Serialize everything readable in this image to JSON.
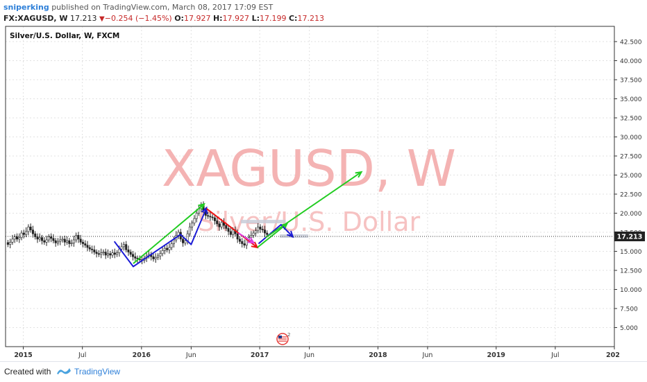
{
  "header": {
    "author": "sniperking",
    "published_text": "published on TradingView.com, March 08, 2017 17:09 EST",
    "symbol": "FX:XAGUSD, W",
    "last": "17.213",
    "change": "−0.254 (−1.45%)",
    "open_label": "O:",
    "open": "17.927",
    "high_label": "H:",
    "high": "17.927",
    "low_label": "L:",
    "low": "17.199",
    "close_label": "C:",
    "close": "17.213"
  },
  "footer": {
    "created_with": "Created with",
    "brand": "TradingView"
  },
  "colors": {
    "green": "#22cc22",
    "red": "#ee1111",
    "blue": "#1a1ad6",
    "magenta": "#e040e0",
    "up": "#222222",
    "down": "#222222",
    "price_tag": "#222222",
    "watermark": "#f4b3b3"
  },
  "chart_data": {
    "type": "candlestick",
    "title": "Silver/U.S. Dollar, W, FXCM",
    "watermark": {
      "symbol": "XAGUSD, W",
      "name": "Silver/U.S. Dollar"
    },
    "price_label": "17.213",
    "y_ticks": [
      "42.500",
      "40.000",
      "37.500",
      "35.000",
      "32.500",
      "30.000",
      "27.500",
      "25.000",
      "22.500",
      "20.000",
      "17.500",
      "15.000",
      "12.500",
      "10.000",
      "7.500",
      "5.000"
    ],
    "y_tick_values": [
      42.5,
      40,
      37.5,
      35,
      32.5,
      30,
      27.5,
      25,
      22.5,
      20,
      17.5,
      15,
      12.5,
      10,
      7.5,
      5
    ],
    "x_ticks": [
      "2015",
      "Jul",
      "2016",
      "Jun",
      "2017",
      "Jun",
      "2018",
      "Jun",
      "2019",
      "Jul",
      "202"
    ],
    "ylim": [
      2.5,
      44.5
    ],
    "close_series": [
      15.9,
      16.2,
      16.6,
      16.9,
      16.6,
      16.8,
      17.4,
      17.2,
      17.6,
      18.2,
      17.8,
      17.3,
      16.9,
      16.6,
      16.8,
      16.4,
      16.2,
      16.5,
      16.9,
      16.7,
      16.4,
      16.1,
      16.3,
      16.5,
      16.6,
      16.2,
      16.4,
      16.0,
      16.1,
      16.5,
      17.1,
      16.6,
      16.2,
      16.0,
      15.8,
      15.5,
      15.3,
      15.2,
      14.9,
      14.7,
      14.6,
      14.8,
      14.9,
      14.5,
      14.7,
      14.5,
      14.8,
      14.6,
      14.8,
      15.3,
      15.6,
      15.9,
      15.2,
      14.9,
      14.6,
      14.3,
      14.1,
      14.0,
      13.9,
      13.8,
      14.1,
      14.4,
      14.6,
      14.3,
      14.0,
      14.2,
      14.4,
      14.7,
      15.1,
      15.4,
      15.2,
      15.5,
      16.0,
      16.5,
      17.1,
      17.5,
      16.6,
      16.1,
      16.4,
      17.3,
      18.2,
      18.7,
      19.3,
      20.0,
      20.6,
      21.0,
      20.4,
      19.7,
      19.6,
      19.5,
      19.4,
      19.0,
      18.6,
      18.2,
      18.8,
      18.4,
      18.0,
      17.6,
      17.2,
      17.8,
      17.3,
      16.6,
      16.3,
      16.0,
      15.8,
      16.5,
      16.8,
      17.1,
      17.4,
      17.7,
      18.2,
      17.9,
      17.8,
      17.4,
      17.2
    ],
    "drawings": [
      {
        "color": "blue",
        "points": [
          [
            2015.77,
            16.3
          ],
          [
            2015.93,
            13.0
          ],
          [
            2016.33,
            17.2
          ],
          [
            2016.42,
            15.9
          ],
          [
            2016.55,
            20.7
          ]
        ]
      },
      {
        "color": "green",
        "points": [
          [
            2015.93,
            13.4
          ],
          [
            2016.53,
            21.2
          ]
        ]
      },
      {
        "color": "red",
        "points": [
          [
            2016.55,
            20.6
          ],
          [
            2016.98,
            15.5
          ]
        ]
      },
      {
        "color": "magenta",
        "points": [
          [
            2016.82,
            17.4
          ],
          [
            2016.95,
            16.1
          ]
        ]
      },
      {
        "color": "green",
        "points": [
          [
            2016.98,
            15.5
          ],
          [
            2017.23,
            18.6
          ]
        ]
      },
      {
        "color": "blue",
        "points": [
          [
            2016.99,
            16.0
          ],
          [
            2017.18,
            18.5
          ],
          [
            2017.28,
            16.9
          ]
        ]
      },
      {
        "color": "green",
        "points": [
          [
            2017.05,
            16.8
          ],
          [
            2017.86,
            25.4
          ]
        ]
      }
    ],
    "zones": [
      {
        "x0": 2016.84,
        "x1": 2017.22,
        "y": 18.9
      },
      {
        "x0": 2017.17,
        "x1": 2017.41,
        "y": 17.0
      }
    ]
  }
}
